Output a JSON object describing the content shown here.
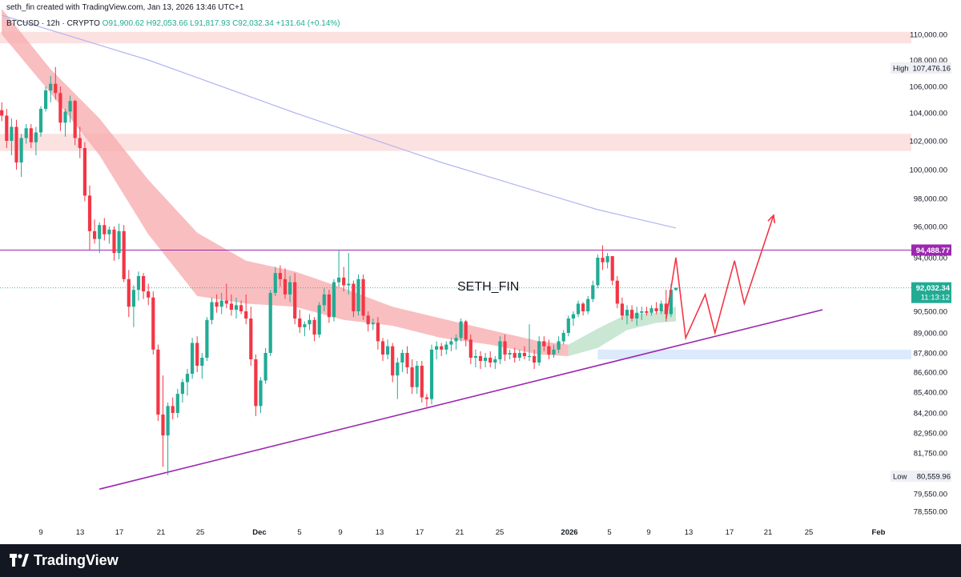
{
  "header": {
    "title": "seth_fin created with TradingView.com, Jan 13, 2026 13:46 UTC+1"
  },
  "ohlc": {
    "symbol": "BTCUSD · 12h · CRYPTO",
    "open": "O91,900.62",
    "high": "H92,053.66",
    "low": "L91,817.93",
    "close": "C92,032.34",
    "change": "+131.64 (+0.14%)"
  },
  "watermark": "SETH_FIN",
  "footer": {
    "brand": "TradingView"
  },
  "colors": {
    "up": "#22ab94",
    "down": "#f23645",
    "trendline": "#9c27b0",
    "resistance": "#9c27b0",
    "ma_slow": "#b2b5f0",
    "cloud_bear": "#f7a8ab",
    "cloud_bull": "#b7dfc4",
    "zone_red": "#fcdcdc",
    "zone_blue": "#d6e6fb",
    "projection": "#f23645"
  },
  "chart_data": {
    "type": "candlestick",
    "interval": "12h",
    "yaxis": {
      "ticks": [
        110000,
        108000,
        106000,
        104000,
        102000,
        100000,
        98000,
        96000,
        94000,
        90500,
        89000,
        87800,
        86600,
        85400,
        84200,
        82950,
        81750,
        79550,
        78550
      ],
      "tick_labels": [
        "110,000.00",
        "108,000.00",
        "106,000.00",
        "104,000.00",
        "102,000.00",
        "100,000.00",
        "98,000.00",
        "96,000.00",
        "94,000.00",
        "90,500.00",
        "89,000.00",
        "87,800.00",
        "86,600.00",
        "85,400.00",
        "84,200.00",
        "82,950.00",
        "81,750.00",
        "79,550.00",
        "78,550.00"
      ]
    },
    "xaxis": {
      "tick_labels": [
        "9",
        "13",
        "17",
        "21",
        "25",
        "Dec",
        "5",
        "9",
        "13",
        "17",
        "21",
        "25",
        "2026",
        "5",
        "9",
        "13",
        "17",
        "21",
        "25",
        "Feb"
      ]
    },
    "price_labels": {
      "high": {
        "tag": "High",
        "value": "107,476.16"
      },
      "low": {
        "tag": "Low",
        "value": "80,559.96"
      },
      "resistance": {
        "value": "94,488.77"
      },
      "last": {
        "value": "92,032.34",
        "countdown": "11:13:12"
      }
    },
    "resistance_level": 94488.77,
    "zones": [
      {
        "kind": "supply",
        "from": 109300,
        "to": 110200
      },
      {
        "kind": "supply",
        "from": 101300,
        "to": 102500
      },
      {
        "kind": "demand",
        "from": 87400,
        "to": 88000
      }
    ],
    "trendline": {
      "from": [
        "2025-11-15",
        79800
      ],
      "to": [
        "2026-01-28",
        90600
      ]
    },
    "ma_slow": [
      [
        "2025-11-05",
        111500
      ],
      [
        "2025-11-20",
        108000
      ],
      [
        "2025-12-05",
        104000
      ],
      [
        "2025-12-20",
        100500
      ],
      [
        "2026-01-05",
        97200
      ],
      [
        "2026-01-13",
        95900
      ]
    ],
    "cloud": {
      "upper": [
        [
          "2025-11-05",
          112000
        ],
        [
          "2025-11-10",
          107300
        ],
        [
          "2025-11-15",
          103600
        ],
        [
          "2025-11-20",
          99300
        ],
        [
          "2025-11-25",
          95600
        ],
        [
          "2025-11-30",
          93800
        ],
        [
          "2025-12-05",
          93100
        ],
        [
          "2025-12-10",
          92000
        ],
        [
          "2025-12-15",
          90800
        ],
        [
          "2025-12-20",
          90000
        ],
        [
          "2025-12-25",
          89200
        ],
        [
          "2025-12-30",
          88500
        ],
        [
          "2026-01-02",
          88300
        ]
      ],
      "lower": [
        [
          "2025-11-05",
          110000
        ],
        [
          "2025-11-10",
          105500
        ],
        [
          "2025-11-15",
          101000
        ],
        [
          "2025-11-20",
          95500
        ],
        [
          "2025-11-25",
          91500
        ],
        [
          "2025-11-30",
          91000
        ],
        [
          "2025-12-05",
          90800
        ],
        [
          "2025-12-10",
          89900
        ],
        [
          "2025-12-15",
          89500
        ],
        [
          "2025-12-20",
          88700
        ],
        [
          "2025-12-25",
          88300
        ],
        [
          "2025-12-30",
          87700
        ],
        [
          "2026-01-02",
          87600
        ]
      ],
      "bull_upper": [
        [
          "2026-01-02",
          88300
        ],
        [
          "2026-01-05",
          89300
        ],
        [
          "2026-01-08",
          90300
        ],
        [
          "2026-01-11",
          90400
        ],
        [
          "2026-01-13",
          90800
        ]
      ],
      "bull_lower": [
        [
          "2026-01-02",
          87600
        ],
        [
          "2026-01-05",
          88100
        ],
        [
          "2026-01-08",
          89200
        ],
        [
          "2026-01-11",
          89700
        ],
        [
          "2026-01-13",
          89800
        ]
      ]
    },
    "projection": [
      [
        "2026-01-12",
        90000
      ],
      [
        "2026-01-13",
        94000
      ],
      [
        "2026-01-14",
        88700
      ],
      [
        "2026-01-16",
        91600
      ],
      [
        "2026-01-17",
        89000
      ],
      [
        "2026-01-19",
        93800
      ],
      [
        "2026-01-20",
        91000
      ],
      [
        "2026-01-23",
        96800
      ]
    ],
    "candles": [
      [
        "2025-11-05",
        104200,
        104800,
        103400,
        103800
      ],
      [
        "2025-11-05.5",
        103800,
        104300,
        101500,
        102000
      ],
      [
        "2025-11-06",
        102000,
        103600,
        101000,
        103000
      ],
      [
        "2025-11-06.5",
        103000,
        103500,
        100000,
        100500
      ],
      [
        "2025-11-07",
        100500,
        102500,
        99500,
        102200
      ],
      [
        "2025-11-07.5",
        102200,
        103200,
        101800,
        102900
      ],
      [
        "2025-11-08",
        102900,
        103200,
        101500,
        101900
      ],
      [
        "2025-11-08.5",
        101900,
        103000,
        101000,
        102600
      ],
      [
        "2025-11-09",
        102600,
        104500,
        102300,
        104300
      ],
      [
        "2025-11-09.5",
        104300,
        106000,
        104100,
        105700
      ],
      [
        "2025-11-10",
        105700,
        106800,
        104800,
        106200
      ],
      [
        "2025-11-10.5",
        106200,
        107476,
        105000,
        105500
      ],
      [
        "2025-11-11",
        105500,
        106000,
        102700,
        103300
      ],
      [
        "2025-11-11.5",
        103300,
        104300,
        102300,
        104100
      ],
      [
        "2025-11-12",
        104100,
        105300,
        103300,
        104900
      ],
      [
        "2025-11-12.5",
        104900,
        105000,
        101700,
        102200
      ],
      [
        "2025-11-13",
        102200,
        103000,
        100800,
        101500
      ],
      [
        "2025-11-13.5",
        101500,
        101900,
        97800,
        98200
      ],
      [
        "2025-11-14",
        98200,
        98900,
        94500,
        95700
      ],
      [
        "2025-11-14.5",
        95700,
        96500,
        94900,
        95200
      ],
      [
        "2025-11-15",
        95200,
        96300,
        94300,
        96100
      ],
      [
        "2025-11-15.5",
        96100,
        96600,
        95100,
        95500
      ],
      [
        "2025-11-16",
        95500,
        96000,
        94900,
        95800
      ],
      [
        "2025-11-16.5",
        95800,
        96000,
        93800,
        94300
      ],
      [
        "2025-11-17",
        94300,
        96200,
        93900,
        95700
      ],
      [
        "2025-11-17.5",
        95700,
        96100,
        92400,
        92600
      ],
      [
        "2025-11-18",
        92600,
        93200,
        90100,
        90800
      ],
      [
        "2025-11-18.5",
        90800,
        92200,
        89400,
        91900
      ],
      [
        "2025-11-19",
        91900,
        93100,
        91200,
        92800
      ],
      [
        "2025-11-19.5",
        92800,
        93000,
        91300,
        91800
      ],
      [
        "2025-11-20",
        91800,
        92300,
        90900,
        91400
      ],
      [
        "2025-11-20.5",
        91400,
        91800,
        87700,
        88000
      ],
      [
        "2025-11-21",
        88000,
        88300,
        83700,
        84100
      ],
      [
        "2025-11-21.5",
        84100,
        86400,
        81000,
        82800
      ],
      [
        "2025-11-22",
        82800,
        84800,
        80560,
        84600
      ],
      [
        "2025-11-22.5",
        84600,
        85100,
        83800,
        84200
      ],
      [
        "2025-11-23",
        84200,
        85600,
        83900,
        85300
      ],
      [
        "2025-11-23.5",
        85300,
        86200,
        84800,
        86000
      ],
      [
        "2025-11-24",
        86000,
        86800,
        85200,
        86500
      ],
      [
        "2025-11-24.5",
        86500,
        88700,
        86200,
        88400
      ],
      [
        "2025-11-25",
        88400,
        88800,
        86600,
        87000
      ],
      [
        "2025-11-25.5",
        87000,
        87800,
        86200,
        87500
      ],
      [
        "2025-11-26",
        87500,
        90100,
        87300,
        89900
      ],
      [
        "2025-11-26.5",
        89900,
        91400,
        89600,
        91100
      ],
      [
        "2025-11-27",
        91100,
        91600,
        90400,
        90800
      ],
      [
        "2025-11-27.5",
        90800,
        91700,
        90300,
        91200
      ],
      [
        "2025-11-28",
        91200,
        92300,
        90700,
        91000
      ],
      [
        "2025-11-28.5",
        91000,
        91600,
        90200,
        90600
      ],
      [
        "2025-11-29",
        90600,
        91400,
        90000,
        90900
      ],
      [
        "2025-11-29.5",
        90900,
        91200,
        90300,
        90500
      ],
      [
        "2025-11-30",
        90500,
        91600,
        89600,
        90000
      ],
      [
        "2025-11-30.5",
        90000,
        90800,
        87000,
        87400
      ],
      [
        "2025-12-01",
        87400,
        87700,
        84000,
        84600
      ],
      [
        "2025-12-01.5",
        84600,
        86300,
        84200,
        86100
      ],
      [
        "2025-12-02",
        86100,
        88100,
        85900,
        87800
      ],
      [
        "2025-12-02.5",
        87800,
        91900,
        87600,
        91700
      ],
      [
        "2025-12-03",
        91700,
        93400,
        91500,
        93000
      ],
      [
        "2025-12-03.5",
        93000,
        93500,
        92100,
        92600
      ],
      [
        "2025-12-04",
        92600,
        93300,
        91300,
        91600
      ],
      [
        "2025-12-04.5",
        91600,
        92800,
        91100,
        92400
      ],
      [
        "2025-12-05",
        92400,
        93000,
        89600,
        90000
      ],
      [
        "2025-12-05.5",
        90000,
        90600,
        89000,
        89400
      ],
      [
        "2025-12-06",
        89400,
        89800,
        88800,
        89600
      ],
      [
        "2025-12-06.5",
        89600,
        90300,
        89200,
        89900
      ],
      [
        "2025-12-07",
        89900,
        90100,
        88500,
        88900
      ],
      [
        "2025-12-07.5",
        88900,
        91100,
        88700,
        90900
      ],
      [
        "2025-12-08",
        90900,
        92000,
        90500,
        91600
      ],
      [
        "2025-12-08.5",
        91600,
        91900,
        89700,
        90100
      ],
      [
        "2025-12-09",
        90100,
        92600,
        89800,
        92400
      ],
      [
        "2025-12-09.5",
        92400,
        94500,
        92100,
        92700
      ],
      [
        "2025-12-10",
        92700,
        93400,
        91800,
        92200
      ],
      [
        "2025-12-10.5",
        92200,
        94300,
        91600,
        92300
      ],
      [
        "2025-12-11",
        92300,
        92500,
        90100,
        90500
      ],
      [
        "2025-12-11.5",
        90500,
        92900,
        90200,
        92600
      ],
      [
        "2025-12-12",
        92600,
        92900,
        89900,
        90200
      ],
      [
        "2025-12-12.5",
        90200,
        90500,
        89100,
        89600
      ],
      [
        "2025-12-13",
        89600,
        90000,
        89200,
        89700
      ],
      [
        "2025-12-13.5",
        89700,
        90100,
        88000,
        88500
      ],
      [
        "2025-12-14",
        88500,
        88700,
        87300,
        87700
      ],
      [
        "2025-12-14.5",
        87700,
        88600,
        87400,
        88200
      ],
      [
        "2025-12-15",
        88200,
        88400,
        86000,
        86400
      ],
      [
        "2025-12-15.5",
        86400,
        87500,
        85000,
        87200
      ],
      [
        "2025-12-16",
        87200,
        88000,
        86600,
        87800
      ],
      [
        "2025-12-16.5",
        87800,
        88200,
        86500,
        86900
      ],
      [
        "2025-12-17",
        86900,
        87400,
        85300,
        85700
      ],
      [
        "2025-12-17.5",
        85700,
        87300,
        85300,
        87000
      ],
      [
        "2025-12-18",
        87000,
        87300,
        84800,
        85100
      ],
      [
        "2025-12-18.5",
        85100,
        85300,
        84550,
        85000
      ],
      [
        "2025-12-19",
        85000,
        88300,
        84700,
        88000
      ],
      [
        "2025-12-19.5",
        88000,
        88500,
        87400,
        88200
      ],
      [
        "2025-12-20",
        88200,
        88400,
        87600,
        88000
      ],
      [
        "2025-12-20.5",
        88000,
        88500,
        87700,
        88300
      ],
      [
        "2025-12-21",
        88300,
        88700,
        87900,
        88500
      ],
      [
        "2025-12-21.5",
        88500,
        88900,
        88000,
        88700
      ],
      [
        "2025-12-22",
        88700,
        90000,
        88500,
        89800
      ],
      [
        "2025-12-22.5",
        89800,
        89900,
        88200,
        88600
      ],
      [
        "2025-12-23",
        88600,
        88900,
        87100,
        87500
      ],
      [
        "2025-12-23.5",
        87500,
        88000,
        86900,
        87600
      ],
      [
        "2025-12-24",
        87600,
        87900,
        86800,
        87300
      ],
      [
        "2025-12-24.5",
        87300,
        87800,
        86900,
        87500
      ],
      [
        "2025-12-25",
        87500,
        87900,
        86900,
        87200
      ],
      [
        "2025-12-25.5",
        87200,
        87600,
        86800,
        87400
      ],
      [
        "2025-12-26",
        87400,
        88800,
        87100,
        88500
      ],
      [
        "2025-12-26.5",
        88500,
        88900,
        87300,
        87700
      ],
      [
        "2025-12-27",
        87700,
        88000,
        87400,
        87800
      ],
      [
        "2025-12-27.5",
        87800,
        88100,
        87200,
        87500
      ],
      [
        "2025-12-28",
        87500,
        88000,
        87300,
        87800
      ],
      [
        "2025-12-28.5",
        87800,
        88200,
        87400,
        87600
      ],
      [
        "2025-12-29",
        87600,
        89600,
        87300,
        87600
      ],
      [
        "2025-12-29.5",
        87600,
        88000,
        86800,
        87200
      ],
      [
        "2025-12-30",
        87200,
        88800,
        87000,
        88500
      ],
      [
        "2025-12-30.5",
        88500,
        88800,
        87900,
        88200
      ],
      [
        "2025-12-31",
        88200,
        88600,
        87400,
        87700
      ],
      [
        "2025-12-31.5",
        87700,
        88300,
        87500,
        88000
      ],
      [
        "2026-01-01",
        88000,
        88800,
        87800,
        88500
      ],
      [
        "2026-01-01.5",
        88500,
        89200,
        88300,
        89000
      ],
      [
        "2026-01-02",
        89000,
        90200,
        88800,
        90000
      ],
      [
        "2026-01-02.5",
        90000,
        90500,
        89500,
        90300
      ],
      [
        "2026-01-03",
        90300,
        91200,
        90100,
        91000
      ],
      [
        "2026-01-03.5",
        91000,
        91100,
        90200,
        90500
      ],
      [
        "2026-01-04",
        90500,
        91500,
        90300,
        91300
      ],
      [
        "2026-01-04.5",
        91300,
        92500,
        91100,
        92200
      ],
      [
        "2026-01-05",
        92200,
        94200,
        92000,
        94000
      ],
      [
        "2026-01-05.5",
        94000,
        94789,
        93200,
        93700
      ],
      [
        "2026-01-06",
        93700,
        94300,
        93300,
        94100
      ],
      [
        "2026-01-06.5",
        94100,
        94100,
        92200,
        92500
      ],
      [
        "2026-01-07",
        92500,
        92800,
        90700,
        91000
      ],
      [
        "2026-01-07.5",
        91000,
        91400,
        89900,
        90200
      ],
      [
        "2026-01-08",
        90200,
        90900,
        89600,
        90600
      ],
      [
        "2026-01-08.5",
        90600,
        90900,
        89800,
        90000
      ],
      [
        "2026-01-09",
        90000,
        90800,
        89500,
        90400
      ],
      [
        "2026-01-09.5",
        90400,
        90800,
        89900,
        90500
      ],
      [
        "2026-01-10",
        90500,
        90800,
        90200,
        90400
      ],
      [
        "2026-01-10.5",
        90400,
        90900,
        90200,
        90700
      ],
      [
        "2026-01-11",
        90700,
        91100,
        90300,
        90500
      ],
      [
        "2026-01-11.5",
        90500,
        91200,
        90300,
        91000
      ],
      [
        "2026-01-12",
        91000,
        91900,
        89800,
        90300
      ],
      [
        "2026-01-12.5",
        90300,
        92300,
        90100,
        91900
      ],
      [
        "2026-01-13",
        91900,
        92054,
        91818,
        92032
      ]
    ]
  }
}
